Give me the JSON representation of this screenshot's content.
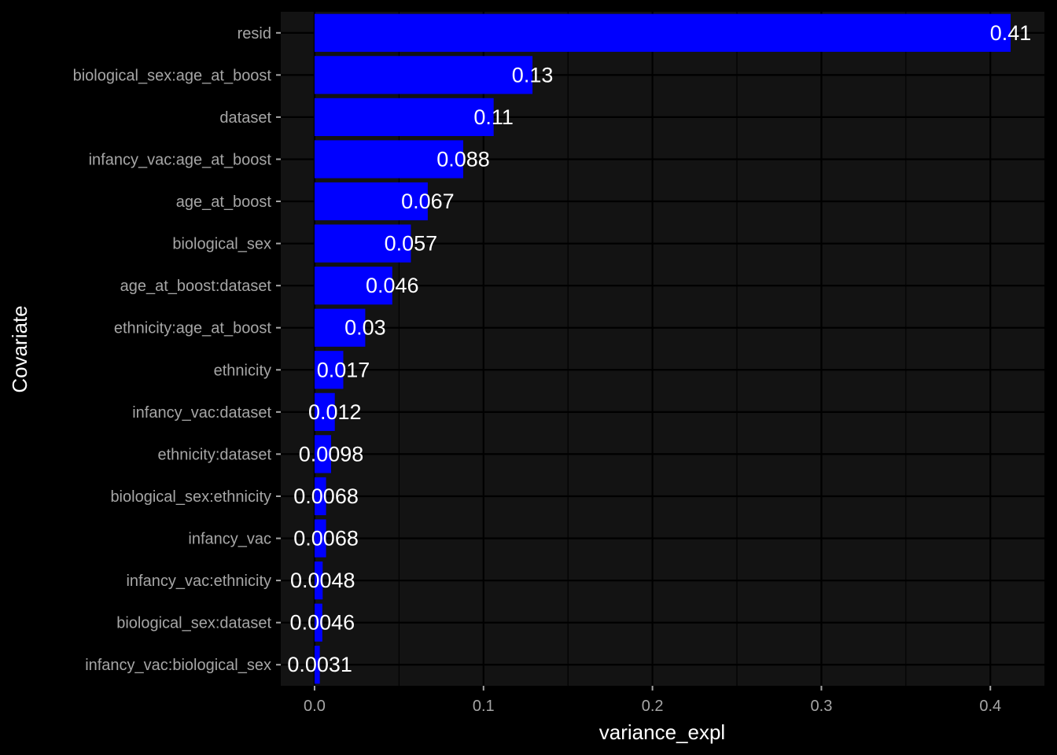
{
  "chart_data": {
    "type": "bar",
    "orientation": "horizontal",
    "xlabel": "variance_expl",
    "ylabel": "Covariate",
    "xlim": [
      -0.02,
      0.432
    ],
    "x_ticks": [
      0.0,
      0.1,
      0.2,
      0.3,
      0.4
    ],
    "x_tick_labels": [
      "0.0",
      "0.1",
      "0.2",
      "0.3",
      "0.4"
    ],
    "grid": true,
    "legend": "none",
    "colors": {
      "background": "#000000",
      "panel": "#131313",
      "grid": "#000000",
      "bar": "#0000ff",
      "label": "#ffffff",
      "tick": "#a6a6a6"
    },
    "categories": [
      "resid",
      "biological_sex:age_at_boost",
      "dataset",
      "infancy_vac:age_at_boost",
      "age_at_boost",
      "biological_sex",
      "age_at_boost:dataset",
      "ethnicity:age_at_boost",
      "ethnicity",
      "infancy_vac:dataset",
      "ethnicity:dataset",
      "biological_sex:ethnicity",
      "infancy_vac",
      "infancy_vac:ethnicity",
      "biological_sex:dataset",
      "infancy_vac:biological_sex"
    ],
    "values": [
      0.412,
      0.129,
      0.106,
      0.088,
      0.067,
      0.057,
      0.046,
      0.03,
      0.017,
      0.012,
      0.0098,
      0.0068,
      0.0068,
      0.0048,
      0.0046,
      0.0031
    ],
    "data_labels": [
      "0.41",
      "0.13",
      "0.11",
      "0.088",
      "0.067",
      "0.057",
      "0.046",
      "0.03",
      "0.017",
      "0.012",
      "0.0098",
      "0.0068",
      "0.0068",
      "0.0048",
      "0.0046",
      "0.0031"
    ]
  }
}
